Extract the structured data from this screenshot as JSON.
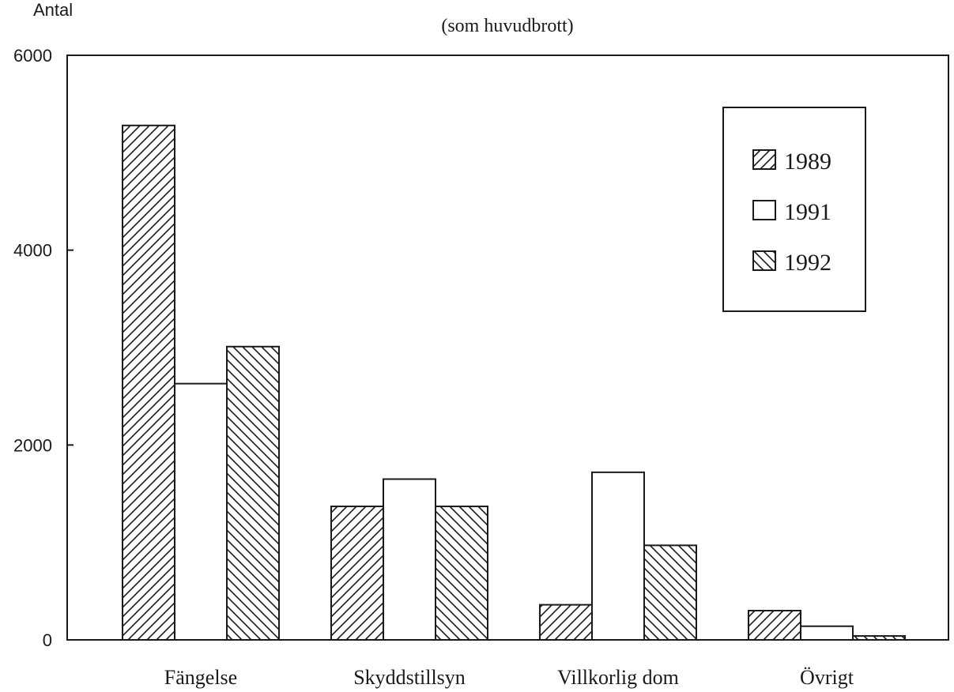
{
  "chart_data": {
    "type": "bar",
    "title": "",
    "subtitle": "(som huvudbrott)",
    "ylabel": "Antal",
    "xlabel": "",
    "ylim": [
      0,
      6000
    ],
    "yticks": [
      "0",
      "2000",
      "4000",
      "6000"
    ],
    "categories": [
      "Fängelse",
      "Skyddstillsyn",
      "Villkorlig dom",
      "Övrigt"
    ],
    "series": [
      {
        "name": "1989",
        "pattern": "diagonal-up",
        "values": [
          5280,
          1370,
          360,
          300
        ]
      },
      {
        "name": "1991",
        "pattern": "empty",
        "values": [
          2630,
          1650,
          1720,
          140
        ]
      },
      {
        "name": "1992",
        "pattern": "diagonal-down",
        "values": [
          3010,
          1370,
          970,
          40
        ]
      }
    ],
    "grid": false,
    "legend_position": "top-right",
    "colors": {
      "ink": "#1a1a1a",
      "background": "#ffffff"
    }
  }
}
